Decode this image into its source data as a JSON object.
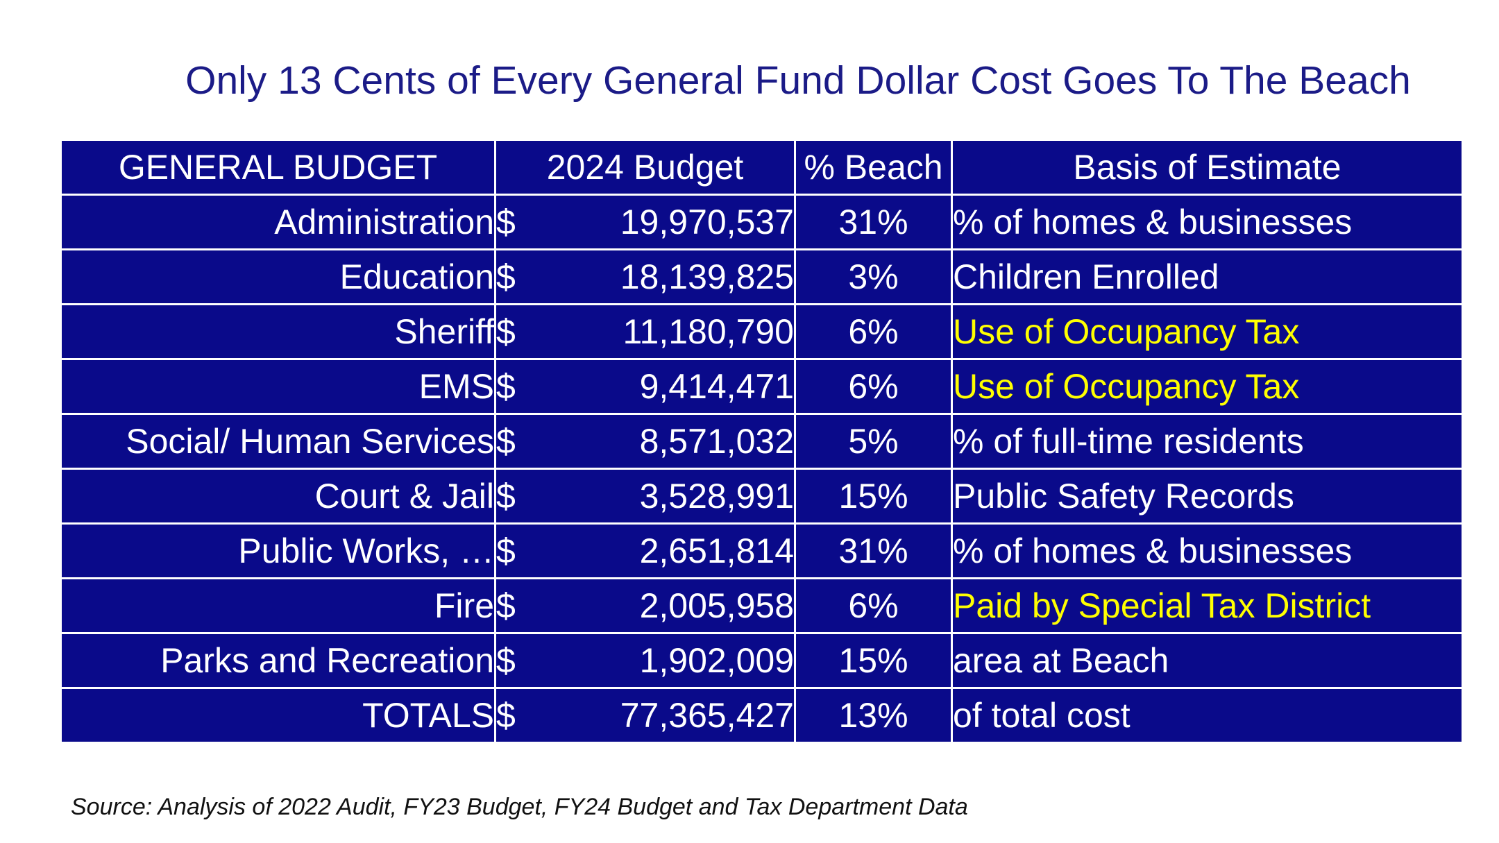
{
  "title": "Only 13 Cents of Every General Fund Dollar Cost Goes To The Beach",
  "table": {
    "headers": [
      "GENERAL BUDGET",
      "2024 Budget",
      "% Beach",
      "Basis of Estimate"
    ],
    "rows": [
      {
        "category": "Administration",
        "currency": "$",
        "budget": "19,970,537",
        "pct_beach": "31%",
        "basis": "% of homes & businesses",
        "basis_color": "#ffffff"
      },
      {
        "category": "Education",
        "currency": "$",
        "budget": "18,139,825",
        "pct_beach": "3%",
        "basis": "Children Enrolled",
        "basis_color": "#ffffff"
      },
      {
        "category": "Sheriff",
        "currency": "$",
        "budget": "11,180,790",
        "pct_beach": "6%",
        "basis": "Use of Occupancy Tax",
        "basis_color": "#ffff00"
      },
      {
        "category": "EMS",
        "currency": "$",
        "budget": "9,414,471",
        "pct_beach": "6%",
        "basis": "Use of Occupancy Tax",
        "basis_color": "#ffff00"
      },
      {
        "category": "Social/ Human Services",
        "currency": "$",
        "budget": "8,571,032",
        "pct_beach": "5%",
        "basis": "% of full-time residents",
        "basis_color": "#ffffff"
      },
      {
        "category": "Court & Jail",
        "currency": "$",
        "budget": "3,528,991",
        "pct_beach": "15%",
        "basis": "Public Safety Records",
        "basis_color": "#ffffff"
      },
      {
        "category": "Public Works, …",
        "currency": "$",
        "budget": "2,651,814",
        "pct_beach": "31%",
        "basis": "% of homes & businesses",
        "basis_color": "#ffffff"
      },
      {
        "category": "Fire",
        "currency": "$",
        "budget": "2,005,958",
        "pct_beach": "6%",
        "basis": "Paid by Special Tax District",
        "basis_color": "#ffff00"
      },
      {
        "category": "Parks and Recreation",
        "currency": "$",
        "budget": "1,902,009",
        "pct_beach": "15%",
        "basis": "area at Beach",
        "basis_color": "#ffffff"
      },
      {
        "category": "TOTALS",
        "currency": "$",
        "budget": "77,365,427",
        "pct_beach": "13%",
        "basis": "of total cost",
        "basis_color": "#ffffff"
      }
    ]
  },
  "source": "Source: Analysis of 2022 Audit, FY23  Budget, FY24 Budget and Tax Department Data",
  "colors": {
    "title": "#1b1b87",
    "table_bg": "#0a0a8a",
    "highlight": "#ffff00"
  }
}
